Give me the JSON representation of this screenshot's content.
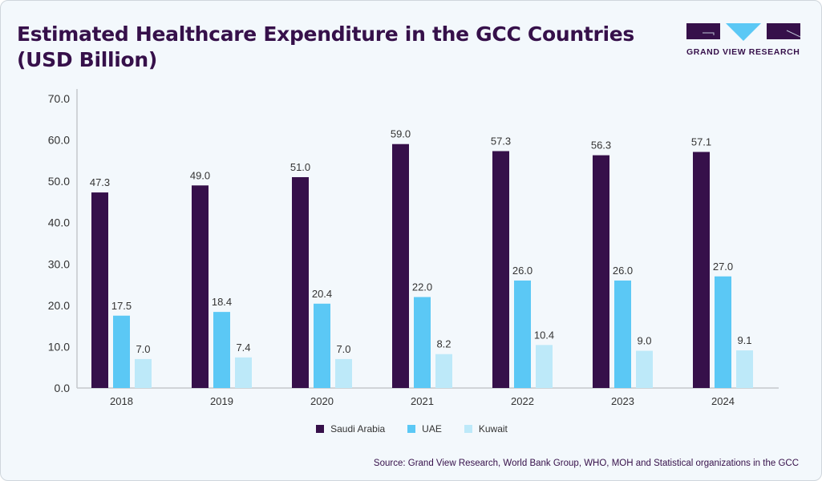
{
  "title": "Estimated Healthcare Expenditure in the GCC Countries (USD Billion)",
  "logo": {
    "text": "GRAND VIEW RESEARCH",
    "colors": {
      "dark": "#36104a",
      "accent": "#5bc8f5"
    }
  },
  "source": "Source: Grand View Research, World Bank Group, WHO, MOH and Statistical organizations in the GCC",
  "chart_data": {
    "type": "bar",
    "title": "Estimated Healthcare Expenditure in the GCC Countries (USD Billion)",
    "categories": [
      "2018",
      "2019",
      "2020",
      "2021",
      "2022",
      "2023",
      "2024"
    ],
    "series": [
      {
        "name": "Saudi Arabia",
        "color": "#36104a",
        "values": [
          47.3,
          49.0,
          51.0,
          59.0,
          57.3,
          56.3,
          57.1
        ]
      },
      {
        "name": "UAE",
        "color": "#5bc8f5",
        "values": [
          17.5,
          18.4,
          20.4,
          22.0,
          26.0,
          26.0,
          27.0
        ]
      },
      {
        "name": "Kuwait",
        "color": "#bde9f9",
        "values": [
          7.0,
          7.4,
          7.0,
          8.2,
          10.4,
          9.0,
          9.1
        ]
      }
    ],
    "yticks": [
      "0.0",
      "10.0",
      "20.0",
      "30.0",
      "40.0",
      "50.0",
      "60.0",
      "70.0"
    ],
    "ylim": [
      0,
      70
    ],
    "grid": false,
    "legend": "bottom-center",
    "data_labels": true
  }
}
